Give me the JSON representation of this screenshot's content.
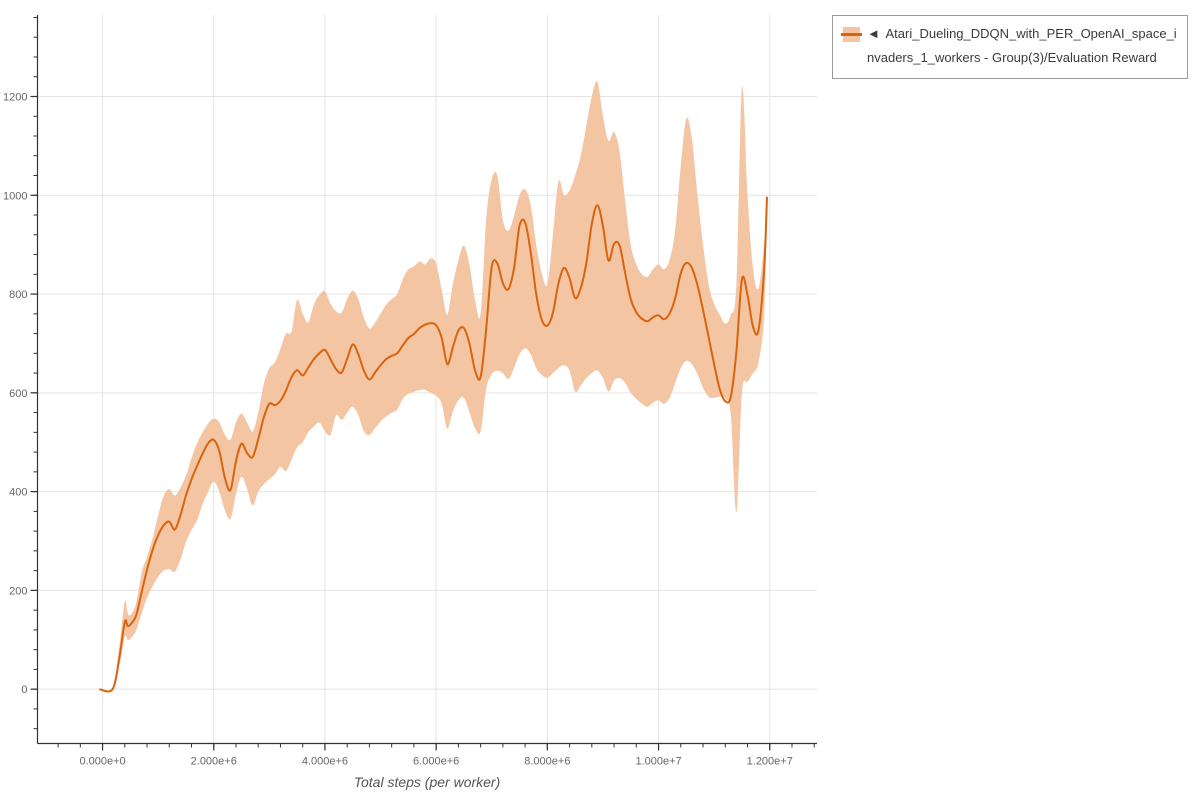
{
  "page": {
    "background": "#ffffff"
  },
  "legend": {
    "marker": "◄",
    "label": "Atari_Dueling_DDQN_with_PER_OpenAI_space_invaders_1_workers - Group(3)/Evaluation Reward",
    "band_color": "#f3c5a2",
    "line_color": "#d9640e",
    "border_color": "#9a9a9a"
  },
  "axes": {
    "x": {
      "title": "Total steps (per worker)",
      "tick_labels": [
        "0.000e+0",
        "2.000e+6",
        "4.000e+6",
        "6.000e+6",
        "8.000e+6",
        "1.000e+7",
        "1.200e+7"
      ],
      "tick_values_e6": [
        0,
        2,
        4,
        6,
        8,
        10,
        12
      ],
      "minor_tick_step_e6": 0.4,
      "range_e6": [
        -1.17,
        12.85
      ]
    },
    "y": {
      "tick_labels": [
        "0",
        "200",
        "400",
        "600",
        "800",
        "1000",
        "1200"
      ],
      "tick_values": [
        0,
        200,
        400,
        600,
        800,
        1000,
        1200
      ],
      "minor_tick_step": 40,
      "range": [
        -110,
        1365
      ]
    }
  },
  "chart_data": {
    "type": "line",
    "title": "",
    "xlabel": "Total steps (per worker)",
    "ylabel": "",
    "xlim_e6": [
      -1.17,
      12.85
    ],
    "ylim": [
      -110,
      1365
    ],
    "grid": true,
    "legend_position": "top-right",
    "colors": {
      "line": "#d9640e",
      "band": "#f3c5a2",
      "grid": "#e4e4e4",
      "axis": "#333333",
      "tick_label": "#666666"
    },
    "series": [
      {
        "name": "Atari_Dueling_DDQN_with_PER_OpenAI_space_invaders_1_workers - Group(3)/Evaluation Reward",
        "x_e6": [
          -0.06,
          0.18,
          0.3,
          0.4,
          0.45,
          0.5,
          0.6,
          0.7,
          0.8,
          0.9,
          1.0,
          1.1,
          1.2,
          1.3,
          1.4,
          1.5,
          1.6,
          1.7,
          1.8,
          1.9,
          2.0,
          2.1,
          2.2,
          2.3,
          2.4,
          2.5,
          2.6,
          2.7,
          2.8,
          2.9,
          3.0,
          3.1,
          3.2,
          3.3,
          3.4,
          3.5,
          3.6,
          3.7,
          3.8,
          3.9,
          4.0,
          4.1,
          4.2,
          4.3,
          4.4,
          4.5,
          4.6,
          4.7,
          4.8,
          4.9,
          5.0,
          5.1,
          5.2,
          5.3,
          5.4,
          5.5,
          5.6,
          5.7,
          5.8,
          5.9,
          6.0,
          6.1,
          6.2,
          6.3,
          6.4,
          6.5,
          6.6,
          6.7,
          6.8,
          6.9,
          7.0,
          7.1,
          7.2,
          7.3,
          7.4,
          7.5,
          7.6,
          7.7,
          7.8,
          7.9,
          8.0,
          8.1,
          8.2,
          8.3,
          8.4,
          8.5,
          8.6,
          8.7,
          8.8,
          8.9,
          9.0,
          9.1,
          9.2,
          9.3,
          9.4,
          9.5,
          9.6,
          9.7,
          9.8,
          9.9,
          10.0,
          10.1,
          10.2,
          10.3,
          10.4,
          10.5,
          10.6,
          10.7,
          10.8,
          10.9,
          11.0,
          11.1,
          11.2,
          11.3,
          11.4,
          11.5,
          11.6,
          11.7,
          11.8,
          11.9,
          11.95
        ],
        "mean": [
          0,
          0,
          62,
          136,
          128,
          131,
          148,
          195,
          242,
          282,
          312,
          332,
          339,
          323,
          352,
          392,
          425,
          452,
          477,
          498,
          505,
          482,
          428,
          403,
          462,
          497,
          478,
          470,
          506,
          550,
          578,
          575,
          584,
          605,
          632,
          646,
          635,
          651,
          668,
          680,
          687,
          668,
          648,
          641,
          669,
          698,
          678,
          645,
          627,
          641,
          656,
          668,
          675,
          680,
          696,
          711,
          719,
          731,
          738,
          741,
          737,
          711,
          658,
          692,
          726,
          731,
          699,
          645,
          632,
          730,
          855,
          862,
          822,
          810,
          852,
          938,
          945,
          885,
          800,
          748,
          736,
          762,
          822,
          853,
          832,
          792,
          812,
          862,
          942,
          980,
          938,
          868,
          902,
          898,
          842,
          790,
          763,
          750,
          745,
          753,
          757,
          749,
          761,
          792,
          842,
          863,
          853,
          818,
          768,
          713,
          658,
          608,
          583,
          592,
          683,
          830,
          798,
          733,
          728,
          852,
          997
        ],
        "lower": [
          0,
          0,
          45,
          106,
          100,
          102,
          118,
          152,
          185,
          208,
          228,
          240,
          243,
          238,
          262,
          298,
          322,
          342,
          375,
          400,
          420,
          400,
          362,
          345,
          395,
          430,
          405,
          372,
          400,
          415,
          425,
          435,
          450,
          442,
          465,
          490,
          500,
          520,
          532,
          540,
          522,
          515,
          555,
          545,
          560,
          572,
          555,
          522,
          515,
          528,
          542,
          552,
          560,
          566,
          588,
          598,
          602,
          606,
          606,
          600,
          594,
          578,
          528,
          562,
          585,
          590,
          560,
          528,
          522,
          608,
          638,
          645,
          640,
          628,
          650,
          678,
          690,
          678,
          650,
          636,
          630,
          640,
          650,
          656,
          645,
          602,
          615,
          630,
          640,
          645,
          630,
          603,
          625,
          630,
          620,
          600,
          588,
          578,
          572,
          580,
          585,
          578,
          590,
          620,
          650,
          665,
          658,
          638,
          610,
          592,
          590,
          592,
          588,
          555,
          358,
          600,
          622,
          640,
          662,
          760,
          985
        ],
        "upper": [
          0,
          3,
          85,
          178,
          155,
          150,
          172,
          235,
          268,
          305,
          352,
          392,
          405,
          392,
          408,
          432,
          468,
          498,
          520,
          538,
          548,
          540,
          515,
          505,
          540,
          558,
          540,
          522,
          560,
          618,
          650,
          662,
          690,
          720,
          724,
          788,
          760,
          742,
          778,
          798,
          806,
          780,
          765,
          762,
          790,
          807,
          790,
          752,
          730,
          742,
          760,
          778,
          790,
          800,
          830,
          850,
          856,
          866,
          860,
          872,
          862,
          808,
          758,
          820,
          868,
          898,
          858,
          788,
          760,
          950,
          1032,
          1040,
          950,
          928,
          958,
          1000,
          1012,
          980,
          900,
          842,
          820,
          920,
          1028,
          1000,
          1010,
          1040,
          1080,
          1140,
          1200,
          1230,
          1160,
          1110,
          1128,
          1088,
          988,
          900,
          860,
          840,
          835,
          850,
          860,
          850,
          870,
          930,
          1060,
          1155,
          1115,
          1000,
          900,
          820,
          780,
          758,
          740,
          758,
          820,
          1218,
          1000,
          850,
          812,
          905,
          1005
        ]
      }
    ]
  }
}
